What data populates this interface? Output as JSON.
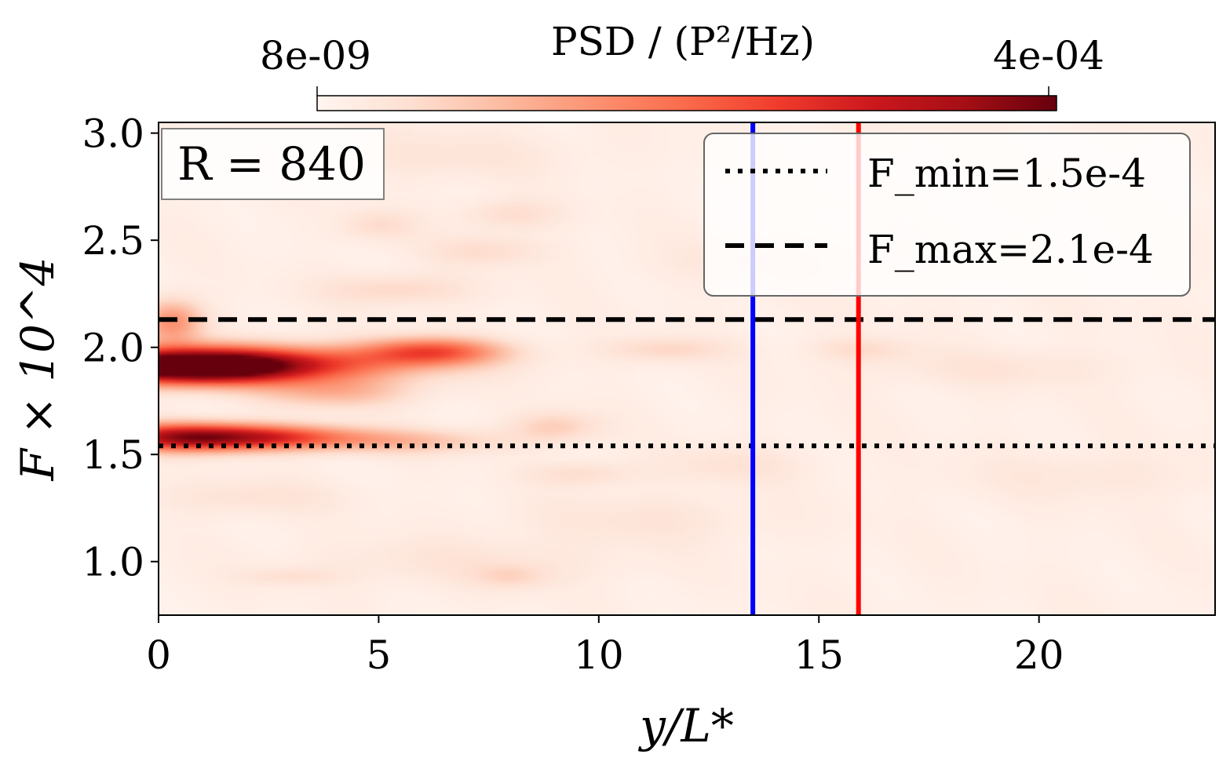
{
  "chart_data": {
    "type": "heatmap",
    "colormap": "Reds",
    "xlabel": "y/L*",
    "ylabel": "F × 10^4",
    "xlim": [
      0,
      24
    ],
    "ylim": [
      0.75,
      3.05
    ],
    "x_ticks": [
      0,
      5,
      10,
      15,
      20
    ],
    "x_tick_labels": [
      "0",
      "5",
      "10",
      "15",
      "20"
    ],
    "y_ticks": [
      1.0,
      1.5,
      2.0,
      2.5,
      3.0
    ],
    "y_tick_labels": [
      "1.0",
      "1.5",
      "2.0",
      "2.5",
      "3.0"
    ],
    "colorbar": {
      "title": "PSD / (P²/Hz)",
      "min_label": "8e-09",
      "max_label": "4e-04",
      "position": "top"
    },
    "annotation": "R = 840",
    "hlines": [
      {
        "name": "F_min",
        "value": 1.54,
        "style": "dotted",
        "color": "#000000"
      },
      {
        "name": "F_max",
        "value": 2.13,
        "style": "dashed",
        "color": "#000000"
      }
    ],
    "vlines": [
      {
        "value": 13.5,
        "color": "#0000ff"
      },
      {
        "value": 15.9,
        "color": "#ff0000"
      }
    ],
    "legend": {
      "placement": "top-right",
      "entries": [
        {
          "label": "F_min=1.5e-4",
          "style": "dotted"
        },
        {
          "label": "F_max=2.1e-4",
          "style": "dashed"
        }
      ]
    },
    "hotspots": [
      {
        "x": 0.6,
        "y": 1.91,
        "sx": 1.7,
        "sy": 0.055,
        "intensity": 1.0
      },
      {
        "x": 2.4,
        "y": 1.92,
        "sx": 2.4,
        "sy": 0.06,
        "intensity": 0.55
      },
      {
        "x": 0.5,
        "y": 1.58,
        "sx": 1.3,
        "sy": 0.045,
        "intensity": 0.75
      },
      {
        "x": 2.6,
        "y": 1.58,
        "sx": 1.4,
        "sy": 0.04,
        "intensity": 0.5
      },
      {
        "x": 6.2,
        "y": 1.98,
        "sx": 1.1,
        "sy": 0.045,
        "intensity": 0.5
      },
      {
        "x": 0.3,
        "y": 2.12,
        "sx": 0.5,
        "sy": 0.07,
        "intensity": 0.35
      },
      {
        "x": 4.0,
        "y": 1.79,
        "sx": 1.2,
        "sy": 0.05,
        "intensity": 0.22
      },
      {
        "x": 5.5,
        "y": 1.56,
        "sx": 1.6,
        "sy": 0.04,
        "intensity": 0.2
      },
      {
        "x": 9.0,
        "y": 1.63,
        "sx": 0.7,
        "sy": 0.05,
        "intensity": 0.15
      },
      {
        "x": 11.5,
        "y": 1.99,
        "sx": 1.0,
        "sy": 0.04,
        "intensity": 0.12
      },
      {
        "x": 5.4,
        "y": 2.27,
        "sx": 1.2,
        "sy": 0.05,
        "intensity": 0.12
      },
      {
        "x": 7.4,
        "y": 2.45,
        "sx": 0.9,
        "sy": 0.05,
        "intensity": 0.1
      },
      {
        "x": 8.0,
        "y": 2.62,
        "sx": 0.8,
        "sy": 0.05,
        "intensity": 0.1
      },
      {
        "x": 5.0,
        "y": 2.57,
        "sx": 0.6,
        "sy": 0.05,
        "intensity": 0.1
      },
      {
        "x": 8.0,
        "y": 0.93,
        "sx": 0.6,
        "sy": 0.04,
        "intensity": 0.1
      },
      {
        "x": 9.6,
        "y": 1.41,
        "sx": 0.8,
        "sy": 0.04,
        "intensity": 0.1
      },
      {
        "x": 16.0,
        "y": 1.99,
        "sx": 0.8,
        "sy": 0.04,
        "intensity": 0.1
      },
      {
        "x": 3.0,
        "y": 0.93,
        "sx": 0.8,
        "sy": 0.03,
        "intensity": 0.08
      },
      {
        "x": 13.0,
        "y": 1.45,
        "sx": 1.2,
        "sy": 0.06,
        "intensity": 0.07
      },
      {
        "x": 2.0,
        "y": 1.3,
        "sx": 1.5,
        "sy": 0.06,
        "intensity": 0.07
      },
      {
        "x": 7.0,
        "y": 1.0,
        "sx": 2.5,
        "sy": 0.08,
        "intensity": 0.06
      },
      {
        "x": 11.0,
        "y": 1.2,
        "sx": 2.0,
        "sy": 0.08,
        "intensity": 0.06
      },
      {
        "x": 19.0,
        "y": 1.9,
        "sx": 2.0,
        "sy": 0.06,
        "intensity": 0.06
      },
      {
        "x": 6.5,
        "y": 2.9,
        "sx": 2.0,
        "sy": 0.08,
        "intensity": 0.06
      },
      {
        "x": 14.0,
        "y": 2.4,
        "sx": 2.0,
        "sy": 0.08,
        "intensity": 0.05
      },
      {
        "x": 21.0,
        "y": 1.4,
        "sx": 2.0,
        "sy": 0.08,
        "intensity": 0.05
      }
    ]
  }
}
